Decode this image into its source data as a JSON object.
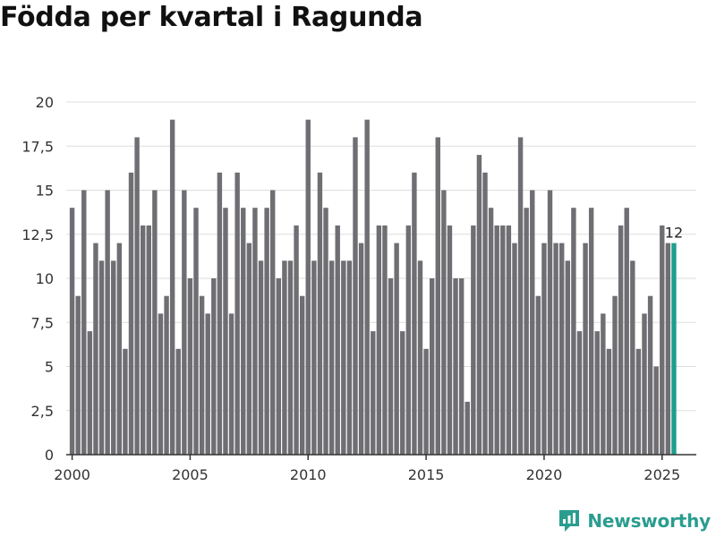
{
  "header": {
    "title": "Födda per kvartal i Ragunda"
  },
  "brand": {
    "name": "Newsworthy",
    "icon": "newsworthy-logo-icon",
    "color": "#2a9d8f"
  },
  "colors": {
    "bar": "#6e6e73",
    "highlight": "#1f9e8e",
    "grid": "#dddddd",
    "axis": "#333333"
  },
  "chart_data": {
    "type": "bar",
    "title": "Födda per kvartal i Ragunda",
    "xlabel": "",
    "ylabel": "",
    "start_year": 2000,
    "periods_per_year": 4,
    "xlim": [
      1999.75,
      2026.45
    ],
    "ylim": [
      0,
      20
    ],
    "yticks": [
      0,
      2.5,
      5,
      7.5,
      10,
      12.5,
      15,
      17.5,
      20
    ],
    "ytick_labels": [
      "0",
      "2,5",
      "5",
      "7,5",
      "10",
      "12,5",
      "15",
      "17,5",
      "20"
    ],
    "xticks": [
      2000,
      2005,
      2010,
      2015,
      2020,
      2025
    ],
    "xtick_labels": [
      "2000",
      "2005",
      "2010",
      "2015",
      "2020",
      "2025"
    ],
    "grid": true,
    "values": [
      14,
      9,
      15,
      7,
      12,
      11,
      15,
      11,
      12,
      6,
      16,
      18,
      13,
      13,
      15,
      8,
      9,
      19,
      6,
      15,
      10,
      14,
      9,
      8,
      10,
      16,
      14,
      8,
      16,
      14,
      12,
      14,
      11,
      14,
      15,
      10,
      11,
      11,
      13,
      9,
      19,
      11,
      16,
      14,
      11,
      13,
      11,
      11,
      18,
      12,
      19,
      7,
      13,
      13,
      10,
      12,
      7,
      13,
      16,
      11,
      6,
      10,
      18,
      15,
      13,
      10,
      10,
      3,
      13,
      17,
      16,
      14,
      13,
      13,
      13,
      12,
      18,
      14,
      15,
      9,
      12,
      15,
      12,
      12,
      11,
      14,
      7,
      12,
      14,
      7,
      8,
      6,
      9,
      13,
      14,
      11,
      6,
      8,
      9,
      5,
      13,
      12,
      12
    ],
    "highlight_index": 102,
    "annotation": {
      "index": 102,
      "text": "12"
    }
  }
}
